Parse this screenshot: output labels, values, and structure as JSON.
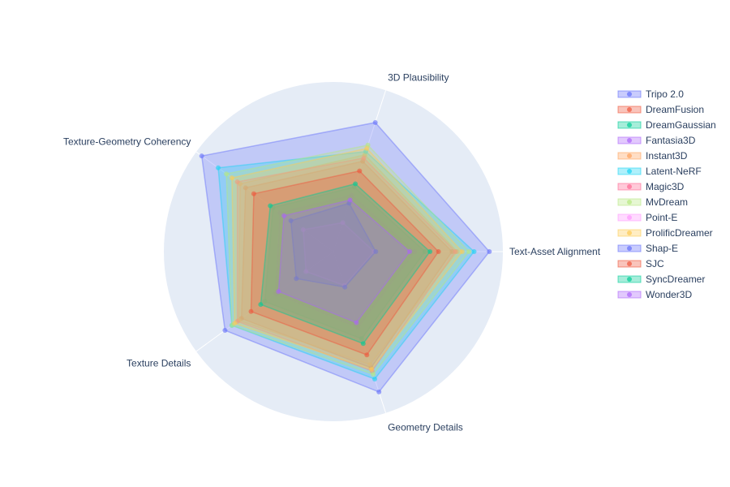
{
  "chart_data": {
    "type": "radar",
    "axes": [
      "Text-Asset Alignment",
      "3D Plausibility",
      "Texture-Geometry Coherency",
      "Texture Details",
      "Geometry Details"
    ],
    "range": [
      0,
      1
    ],
    "grid": true,
    "legend_position": "right",
    "series": [
      {
        "name": "Tripo 2.0",
        "color": "#636efa",
        "values": [
          0.92,
          0.8,
          0.96,
          0.79,
          0.87
        ]
      },
      {
        "name": "DreamFusion",
        "color": "#ef553b",
        "values": [
          0.7,
          0.56,
          0.64,
          0.67,
          0.72
        ]
      },
      {
        "name": "DreamGaussian",
        "color": "#00cc96",
        "values": [
          0.54,
          0.4,
          0.44,
          0.5,
          0.54
        ]
      },
      {
        "name": "Fantasia3D",
        "color": "#ab63fa",
        "values": [
          0.48,
          0.35,
          0.39,
          0.42,
          0.47
        ]
      },
      {
        "name": "Instant3D",
        "color": "#ffa15a",
        "values": [
          0.73,
          0.6,
          0.68,
          0.69,
          0.7
        ]
      },
      {
        "name": "Latent-NeRF",
        "color": "#19d3f3",
        "values": [
          0.83,
          0.62,
          0.84,
          0.74,
          0.79
        ]
      },
      {
        "name": "Magic3D",
        "color": "#ff6692",
        "values": [
          0.72,
          0.58,
          0.7,
          0.7,
          0.74
        ]
      },
      {
        "name": "MvDream",
        "color": "#b6e880",
        "values": [
          0.8,
          0.66,
          0.78,
          0.74,
          0.76
        ]
      },
      {
        "name": "Point-E",
        "color": "#ff97ff",
        "values": [
          0.24,
          0.18,
          0.22,
          0.2,
          0.21
        ]
      },
      {
        "name": "ProlificDreamer",
        "color": "#fecb52",
        "values": [
          0.76,
          0.64,
          0.74,
          0.72,
          0.73
        ]
      },
      {
        "name": "Shap-E",
        "color": "#636efa",
        "values": [
          0.25,
          0.3,
          0.31,
          0.27,
          0.22
        ]
      },
      {
        "name": "SJC",
        "color": "#ef553b",
        "values": [
          0.62,
          0.5,
          0.58,
          0.6,
          0.64
        ]
      },
      {
        "name": "SyncDreamer",
        "color": "#00cc96",
        "values": [
          0.57,
          0.42,
          0.46,
          0.53,
          0.57
        ]
      },
      {
        "name": "Wonder3D",
        "color": "#ab63fa",
        "values": [
          0.45,
          0.32,
          0.36,
          0.4,
          0.44
        ]
      }
    ]
  }
}
